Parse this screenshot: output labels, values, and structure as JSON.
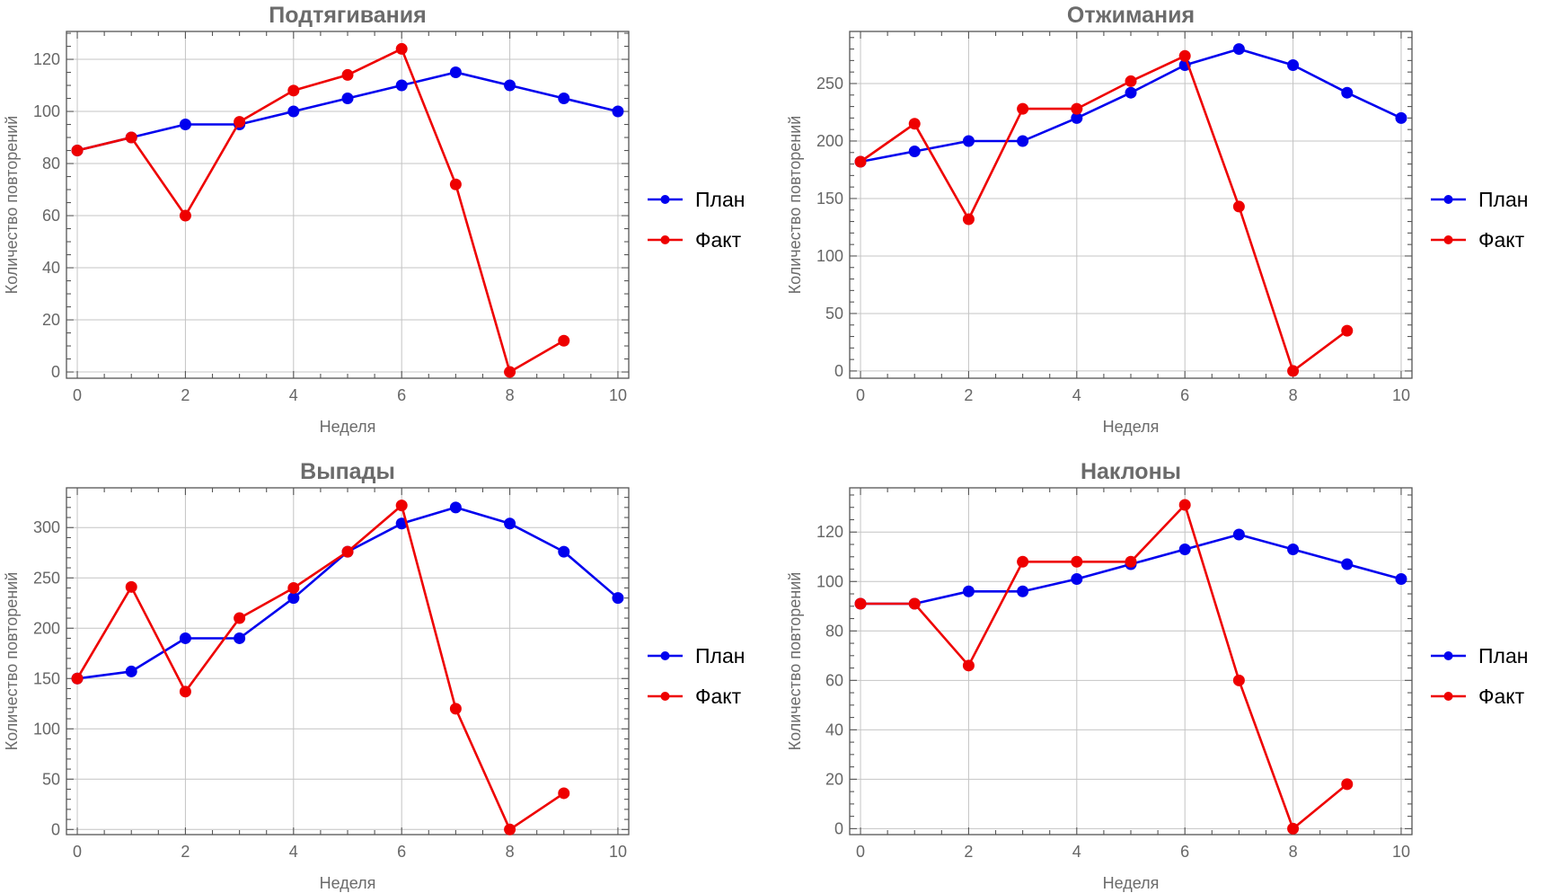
{
  "chart_data": [
    {
      "type": "line",
      "title": "Подтягивания",
      "xlabel": "Неделя",
      "ylabel": "Количество повторений",
      "xlim": [
        -0.2,
        10.2
      ],
      "ylim": [
        -2.4,
        130.7
      ],
      "xticks": [
        0,
        2,
        4,
        6,
        8,
        10
      ],
      "yticks": [
        0,
        20,
        40,
        60,
        80,
        100,
        120
      ],
      "x_minor_step": 0.5,
      "y_minor_step": 5,
      "grid": true,
      "legend_position": "right",
      "series": [
        {
          "name": "План",
          "color": "#0000ee",
          "x": [
            0,
            1,
            2,
            3,
            4,
            5,
            6,
            7,
            8,
            9,
            10
          ],
          "values": [
            85,
            90,
            95,
            95,
            100,
            105,
            110,
            115,
            110,
            105,
            100
          ]
        },
        {
          "name": "Факт",
          "color": "#ee0000",
          "x": [
            0,
            1,
            2,
            3,
            4,
            5,
            6,
            7,
            8,
            9
          ],
          "values": [
            85,
            90,
            60,
            96,
            108,
            114,
            124,
            72,
            0,
            12
          ]
        }
      ]
    },
    {
      "type": "line",
      "title": "Отжимания",
      "xlabel": "Неделя",
      "ylabel": "Количество повторений",
      "xlim": [
        -0.2,
        10.2
      ],
      "ylim": [
        -6.3,
        295.3
      ],
      "xticks": [
        0,
        2,
        4,
        6,
        8,
        10
      ],
      "yticks": [
        0,
        50,
        100,
        150,
        200,
        250
      ],
      "x_minor_step": 0.5,
      "y_minor_step": 10,
      "grid": true,
      "legend_position": "right",
      "series": [
        {
          "name": "План",
          "color": "#0000ee",
          "x": [
            0,
            1,
            2,
            3,
            4,
            5,
            6,
            7,
            8,
            9,
            10
          ],
          "values": [
            182,
            191,
            200,
            200,
            220,
            242,
            266,
            280,
            266,
            242,
            220
          ]
        },
        {
          "name": "Факт",
          "color": "#ee0000",
          "x": [
            0,
            1,
            2,
            3,
            4,
            5,
            6,
            7,
            8,
            9
          ],
          "values": [
            182,
            215,
            132,
            228,
            228,
            252,
            274,
            143,
            0,
            35
          ]
        }
      ]
    },
    {
      "type": "line",
      "title": "Выпады",
      "xlabel": "Неделя",
      "ylabel": "Количество повторений",
      "xlim": [
        -0.2,
        10.2
      ],
      "ylim": [
        -5.1,
        339.5
      ],
      "xticks": [
        0,
        2,
        4,
        6,
        8,
        10
      ],
      "yticks": [
        0,
        50,
        100,
        150,
        200,
        250,
        300
      ],
      "x_minor_step": 0.5,
      "y_minor_step": 10,
      "grid": true,
      "legend_position": "right",
      "series": [
        {
          "name": "План",
          "color": "#0000ee",
          "x": [
            0,
            1,
            2,
            3,
            4,
            5,
            6,
            7,
            8,
            9,
            10
          ],
          "values": [
            150,
            157,
            190,
            190,
            230,
            276,
            304,
            320,
            304,
            276,
            230
          ]
        },
        {
          "name": "Факт",
          "color": "#ee0000",
          "x": [
            0,
            1,
            2,
            3,
            4,
            5,
            6,
            7,
            8,
            9
          ],
          "values": [
            150,
            241,
            137,
            210,
            240,
            276,
            322,
            120,
            0,
            36
          ]
        }
      ]
    },
    {
      "type": "line",
      "title": "Наклоны",
      "xlabel": "Неделя",
      "ylabel": "Количество повторений",
      "xlim": [
        -0.2,
        10.2
      ],
      "ylim": [
        -2.4,
        137.9
      ],
      "xticks": [
        0,
        2,
        4,
        6,
        8,
        10
      ],
      "yticks": [
        0,
        20,
        40,
        60,
        80,
        100,
        120
      ],
      "x_minor_step": 0.5,
      "y_minor_step": 5,
      "grid": true,
      "legend_position": "right",
      "series": [
        {
          "name": "План",
          "color": "#0000ee",
          "x": [
            0,
            1,
            2,
            3,
            4,
            5,
            6,
            7,
            8,
            9,
            10
          ],
          "values": [
            91,
            91,
            96,
            96,
            101,
            107,
            113,
            119,
            113,
            107,
            101
          ]
        },
        {
          "name": "Факт",
          "color": "#ee0000",
          "x": [
            0,
            1,
            2,
            3,
            4,
            5,
            6,
            7,
            8,
            9
          ],
          "values": [
            91,
            91,
            66,
            108,
            108,
            108,
            131,
            60,
            0,
            18
          ]
        }
      ]
    }
  ]
}
